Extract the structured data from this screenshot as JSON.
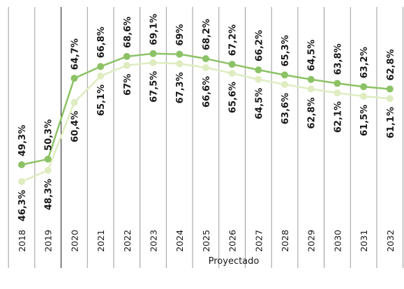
{
  "chart_data": {
    "type": "line",
    "x": [
      "2018",
      "2019",
      "2020",
      "2021",
      "2022",
      "2023",
      "2024",
      "2025",
      "2026",
      "2027",
      "2028",
      "2029",
      "2030",
      "2031",
      "2032"
    ],
    "series": [
      {
        "values": [
          49.3,
          50.3,
          64.7,
          66.8,
          68.6,
          69.1,
          69.0,
          68.2,
          67.2,
          66.2,
          65.3,
          64.5,
          63.8,
          63.2,
          62.8
        ],
        "labels": [
          "49,3%",
          "50,3%",
          "64,7%",
          "66,8%",
          "68,6%",
          "69,1%",
          "69%",
          "68,2%",
          "67,2%",
          "66,2%",
          "65,3%",
          "64,5%",
          "63,8%",
          "63,2%",
          "62,8%"
        ],
        "color": "#8cc265"
      },
      {
        "values": [
          46.3,
          48.3,
          60.4,
          65.1,
          67.0,
          67.5,
          67.3,
          66.6,
          65.6,
          64.5,
          63.6,
          62.8,
          62.1,
          61.5,
          61.1
        ],
        "labels": [
          "46,3%",
          "48,3%",
          "60,4%",
          "65,1%",
          "67%",
          "67,5%",
          "67,3%",
          "66,6%",
          "65,6%",
          "64,5%",
          "63,6%",
          "62,8%",
          "62,1%",
          "61,5%",
          "61,1%"
        ],
        "color": "#dfecc0"
      }
    ],
    "projected_label": "Proyectado",
    "grid_color": "#9a9a9a"
  }
}
